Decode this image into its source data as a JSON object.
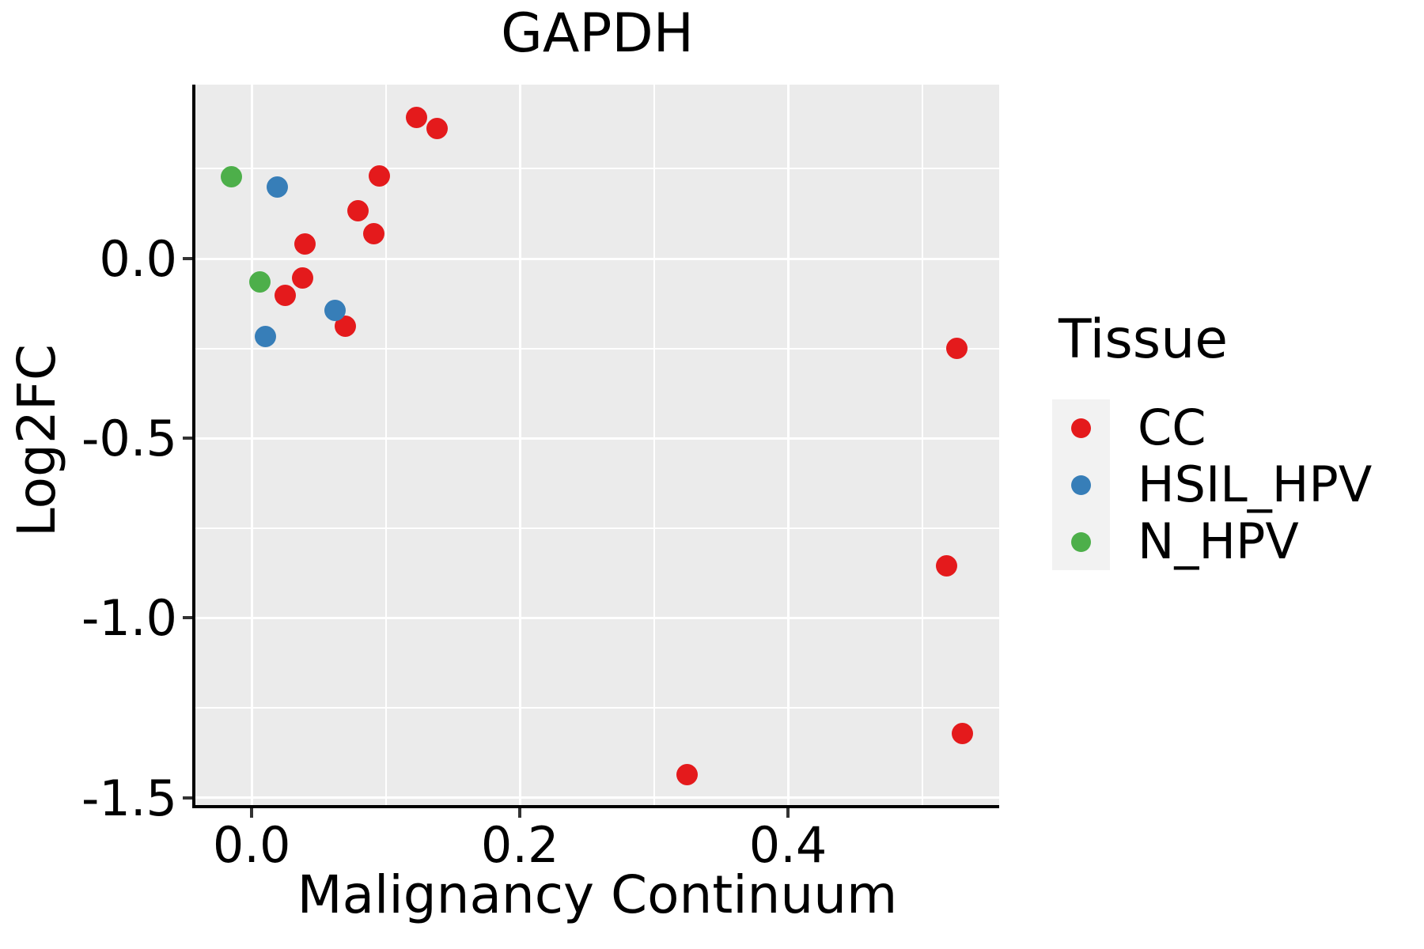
{
  "title": "GAPDH",
  "axes": {
    "x": {
      "label": "Malignancy Continuum",
      "range": [
        -0.042,
        0.5575
      ],
      "major_ticks": [
        0.0,
        0.2,
        0.4
      ],
      "tick_labels": [
        "0.0",
        "0.2",
        "0.4"
      ],
      "minor_ticks": [
        0.1,
        0.3,
        0.5
      ]
    },
    "y": {
      "label": "Log2FC",
      "range": [
        -1.525,
        0.4842
      ],
      "major_ticks": [
        0.0,
        -0.5,
        -1.0,
        -1.5
      ],
      "tick_labels": [
        "0.0",
        "-0.5",
        "-1.0",
        "-1.5"
      ],
      "minor_ticks": [
        0.25,
        -0.25,
        -0.75,
        -1.25
      ]
    }
  },
  "legend": {
    "title": "Tissue",
    "items": [
      {
        "label": "CC",
        "color": "#E41A1C"
      },
      {
        "label": "HSIL_HPV",
        "color": "#377EB8"
      },
      {
        "label": "N_HPV",
        "color": "#4DAF4A"
      }
    ]
  },
  "colors": {
    "panel_background": "#EBEBEB",
    "gridline": "#FFFFFF",
    "axis_line": "#000000",
    "tick_mark": "#333333",
    "legend_key_background": "#F2F2F2",
    "cc_red": "#E41A1C",
    "hsil_hpv_blue": "#377EB8",
    "n_hpv_green": "#4DAF4A"
  },
  "chart_data": {
    "type": "scatter",
    "title": "GAPDH",
    "xlabel": "Malignancy Continuum",
    "ylabel": "Log2FC",
    "xlim": [
      -0.042,
      0.5575
    ],
    "ylim": [
      -1.525,
      0.4842
    ],
    "grid": "white major+minor gridlines on gray panel",
    "legend_title": "Tissue",
    "legend_position": "right",
    "series": [
      {
        "name": "CC",
        "color": "#E41A1C",
        "points": [
          [
            0.123,
            0.392
          ],
          [
            0.138,
            0.361
          ],
          [
            0.095,
            0.229
          ],
          [
            0.079,
            0.134
          ],
          [
            0.091,
            0.07
          ],
          [
            0.04,
            0.04
          ],
          [
            0.038,
            -0.053
          ],
          [
            0.025,
            -0.103
          ],
          [
            0.07,
            -0.189
          ],
          [
            0.325,
            -1.435
          ],
          [
            0.526,
            -0.249
          ],
          [
            0.518,
            -0.856
          ],
          [
            0.53,
            -1.321
          ]
        ]
      },
      {
        "name": "HSIL_HPV",
        "color": "#377EB8",
        "points": [
          [
            0.019,
            0.2
          ],
          [
            0.062,
            -0.143
          ],
          [
            0.01,
            -0.216
          ]
        ]
      },
      {
        "name": "N_HPV",
        "color": "#4DAF4A",
        "points": [
          [
            -0.015,
            0.227
          ],
          [
            0.006,
            -0.064
          ]
        ]
      }
    ]
  }
}
